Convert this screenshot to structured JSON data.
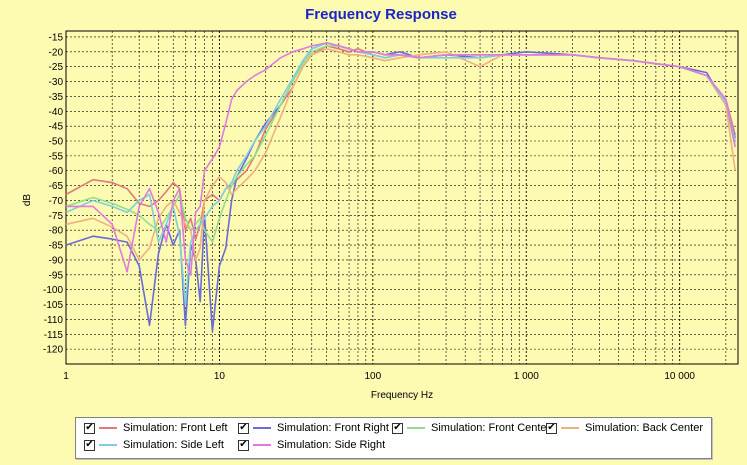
{
  "chart_data": {
    "type": "line",
    "title": "Frequency Response",
    "xlabel": "Frequency Hz",
    "ylabel": "dB",
    "x_scale": "log",
    "xlim": [
      1,
      24000
    ],
    "ylim": [
      -125,
      -13
    ],
    "x_ticks": [
      1,
      10,
      100,
      1000,
      10000
    ],
    "x_tick_labels": [
      "1",
      "10",
      "100",
      "1 000",
      "10 000"
    ],
    "y_ticks": [
      -15,
      -20,
      -25,
      -30,
      -35,
      -40,
      -45,
      -50,
      -55,
      -60,
      -65,
      -70,
      -75,
      -80,
      -85,
      -90,
      -95,
      -100,
      -105,
      -110,
      -115,
      -120
    ],
    "y_tick_labels": [
      "-15",
      "-20",
      "-25",
      "-30",
      "-35",
      "-40",
      "-45",
      "-50",
      "-55",
      "-60",
      "-65",
      "-70",
      "-75",
      "-80",
      "-85",
      "-90",
      "-95",
      "-100",
      "-105",
      "-110",
      "-115",
      "-120"
    ],
    "grid": true,
    "legend_position": "bottom",
    "series": [
      {
        "name": "Simulation: Front Left",
        "color": "#e07a7a",
        "checked": true,
        "x": [
          1,
          1.5,
          2,
          2.5,
          3,
          3.5,
          4,
          4.5,
          5,
          5.5,
          6,
          6.5,
          7,
          7.5,
          8,
          9,
          10,
          11,
          12,
          13,
          15,
          17,
          20,
          25,
          30,
          35,
          40,
          50,
          60,
          70,
          80,
          100,
          120,
          150,
          200,
          300,
          500,
          700,
          1000,
          2000,
          3000,
          5000,
          7000,
          10000,
          15000,
          20000,
          23000
        ],
        "y": [
          -68,
          -63,
          -64,
          -66,
          -71,
          -72,
          -70,
          -67,
          -64,
          -66,
          -80,
          -76,
          -83,
          -78,
          -70,
          -68,
          -70,
          -66,
          -65,
          -63,
          -60,
          -55,
          -46,
          -38,
          -32,
          -25,
          -21,
          -18,
          -19,
          -20,
          -19,
          -21,
          -22,
          -21,
          -22,
          -21,
          -21,
          -21,
          -21,
          -21,
          -22,
          -23,
          -24,
          -25,
          -28,
          -36,
          -48
        ]
      },
      {
        "name": "Simulation: Front Right",
        "color": "#6a6ad8",
        "checked": true,
        "x": [
          1,
          1.5,
          2,
          2.5,
          3,
          3.5,
          4,
          4.5,
          5,
          5.5,
          6,
          6.5,
          7,
          7.5,
          8,
          9,
          10,
          11,
          12,
          13,
          15,
          17,
          20,
          25,
          30,
          35,
          40,
          50,
          60,
          70,
          80,
          100,
          120,
          150,
          200,
          300,
          500,
          700,
          1000,
          2000,
          3000,
          5000,
          7000,
          10000,
          15000,
          20000,
          23000
        ],
        "y": [
          -85,
          -82,
          -83,
          -84,
          -92,
          -112,
          -88,
          -78,
          -85,
          -80,
          -112,
          -85,
          -90,
          -104,
          -75,
          -114,
          -92,
          -86,
          -70,
          -62,
          -56,
          -50,
          -44,
          -38,
          -30,
          -23,
          -19,
          -17,
          -18,
          -19,
          -20,
          -20,
          -21,
          -20,
          -22,
          -21,
          -22,
          -21,
          -20,
          -21,
          -22,
          -23,
          -24,
          -25,
          -27,
          -38,
          -49
        ]
      },
      {
        "name": "Simulation: Front Center",
        "color": "#8ee08e",
        "checked": true,
        "x": [
          1,
          1.5,
          2,
          2.5,
          3,
          3.5,
          4,
          4.5,
          5,
          5.5,
          6,
          6.5,
          7,
          7.5,
          8,
          9,
          10,
          11,
          12,
          13,
          15,
          17,
          20,
          25,
          30,
          35,
          40,
          50,
          60,
          70,
          80,
          100,
          120,
          150,
          200,
          300,
          500,
          700,
          1000,
          2000,
          3000,
          5000,
          7000,
          10000,
          15000,
          20000,
          23000
        ],
        "y": [
          -72,
          -69,
          -71,
          -73,
          -75,
          -78,
          -80,
          -76,
          -72,
          -68,
          -76,
          -80,
          -78,
          -76,
          -80,
          -84,
          -76,
          -70,
          -65,
          -62,
          -58,
          -55,
          -48,
          -38,
          -30,
          -24,
          -20,
          -18,
          -18,
          -19,
          -20,
          -20,
          -21,
          -21,
          -22,
          -21,
          -21,
          -21,
          -21,
          -21,
          -22,
          -23,
          -24,
          -25,
          -28,
          -38,
          -52
        ]
      },
      {
        "name": "Simulation: Back Center",
        "color": "#f0b080",
        "checked": true,
        "x": [
          1,
          1.5,
          2,
          2.5,
          3,
          3.5,
          4,
          4.5,
          5,
          5.5,
          6,
          6.5,
          7,
          7.5,
          8,
          9,
          10,
          11,
          12,
          13,
          15,
          17,
          20,
          25,
          30,
          35,
          40,
          50,
          60,
          70,
          80,
          100,
          120,
          150,
          200,
          300,
          500,
          700,
          1000,
          2000,
          3000,
          5000,
          7000,
          10000,
          15000,
          20000,
          23000
        ],
        "y": [
          -78,
          -76,
          -79,
          -82,
          -90,
          -86,
          -76,
          -72,
          -70,
          -74,
          -78,
          -80,
          -90,
          -86,
          -70,
          -65,
          -62,
          -64,
          -68,
          -66,
          -63,
          -60,
          -54,
          -42,
          -32,
          -25,
          -21,
          -19,
          -20,
          -21,
          -21,
          -22,
          -23,
          -22,
          -21,
          -20,
          -25,
          -21,
          -21,
          -21,
          -22,
          -23,
          -24,
          -25,
          -28,
          -38,
          -60
        ]
      },
      {
        "name": "Simulation: Side Left",
        "color": "#7fcfe0",
        "checked": true,
        "x": [
          1,
          1.5,
          2,
          2.5,
          3,
          3.5,
          4,
          4.5,
          5,
          5.5,
          6,
          6.5,
          7,
          7.5,
          8,
          9,
          10,
          11,
          12,
          13,
          15,
          17,
          20,
          25,
          30,
          35,
          40,
          50,
          60,
          70,
          80,
          100,
          120,
          150,
          200,
          300,
          500,
          700,
          1000,
          2000,
          3000,
          5000,
          7000,
          10000,
          15000,
          20000,
          23000
        ],
        "y": [
          -74,
          -70,
          -72,
          -74,
          -70,
          -68,
          -84,
          -78,
          -72,
          -82,
          -105,
          -84,
          -80,
          -78,
          -76,
          -72,
          -70,
          -66,
          -64,
          -60,
          -55,
          -50,
          -45,
          -36,
          -29,
          -23,
          -19,
          -17,
          -18,
          -19,
          -20,
          -21,
          -22,
          -21,
          -22,
          -22,
          -22,
          -21,
          -21,
          -21,
          -22,
          -23,
          -24,
          -25,
          -28,
          -37,
          -50
        ]
      },
      {
        "name": "Simulation: Side Right",
        "color": "#e07ae0",
        "checked": true,
        "x": [
          1,
          1.5,
          2,
          2.5,
          3,
          3.5,
          4,
          4.5,
          5,
          5.5,
          6,
          6.5,
          7,
          7.5,
          8,
          9,
          10,
          11,
          12,
          13,
          15,
          17,
          20,
          25,
          30,
          35,
          40,
          50,
          60,
          70,
          80,
          100,
          120,
          150,
          200,
          300,
          500,
          700,
          1000,
          2000,
          3000,
          5000,
          7000,
          10000,
          15000,
          20000,
          23000
        ],
        "y": [
          -72,
          -72,
          -78,
          -94,
          -72,
          -66,
          -74,
          -84,
          -70,
          -66,
          -90,
          -95,
          -74,
          -72,
          -60,
          -56,
          -52,
          -44,
          -36,
          -33,
          -30,
          -28,
          -26,
          -22,
          -20,
          -19,
          -18,
          -17,
          -18,
          -19,
          -20,
          -20,
          -21,
          -21,
          -22,
          -21,
          -21,
          -21,
          -21,
          -21,
          -22,
          -23,
          -24,
          -25,
          -28,
          -36,
          -52
        ]
      }
    ]
  }
}
